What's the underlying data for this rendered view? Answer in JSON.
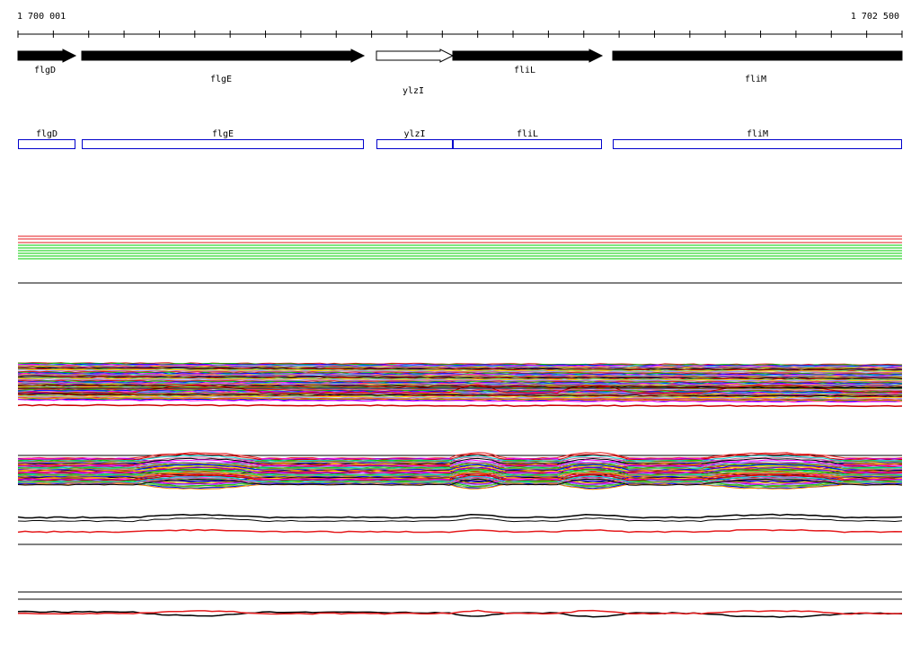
{
  "region": {
    "start_label": "1 700 001",
    "end_label": "1 702 500"
  },
  "genes": [
    {
      "name": "flgD",
      "filled": true,
      "annotation_label": "flgD"
    },
    {
      "name": "flgE",
      "filled": true,
      "annotation_label": "flgE"
    },
    {
      "name": "ylzI",
      "filled": false,
      "annotation_label": "ylzI"
    },
    {
      "name": "fliL",
      "filled": true,
      "annotation_label": "fliL"
    },
    {
      "name": "fliM",
      "filled": true,
      "annotation_label": "fliM"
    }
  ],
  "colors": {
    "gene_fill": "#000000",
    "annotation_box": "#0000cc",
    "axis": "#000000",
    "track_palette": [
      "#e41a1c",
      "#00cc00",
      "#0000ff",
      "#ff00ff",
      "#00cccc",
      "#ff8800",
      "#8800cc",
      "#888800",
      "#000000",
      "#cc0000",
      "#66cc66",
      "#ffcc00",
      "#9999ff",
      "#cc6699"
    ]
  }
}
